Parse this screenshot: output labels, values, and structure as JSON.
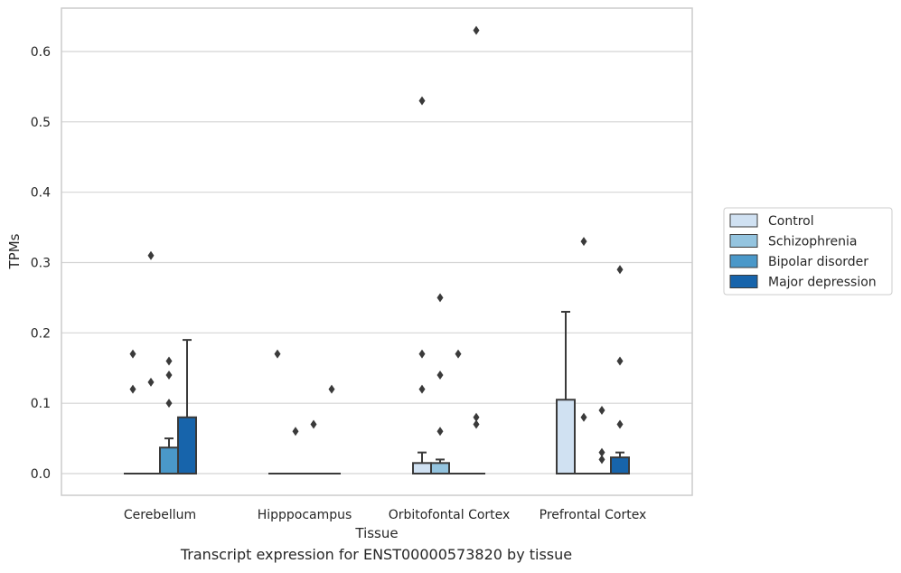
{
  "caption": "Transcript expression for ENST00000573820 by tissue",
  "chart_data": {
    "type": "box",
    "xlabel": "Tissue",
    "ylabel": "TPMs",
    "ylim": [
      -0.03,
      0.66
    ],
    "yticks": [
      "0.0",
      "0.1",
      "0.2",
      "0.3",
      "0.4",
      "0.5",
      "0.6"
    ],
    "grid": "horizontal",
    "legend_position": "right",
    "categories": [
      "Cerebellum",
      "Hipppocampus",
      "Orbitofontal Cortex",
      "Prefrontal Cortex"
    ],
    "series": [
      {
        "name": "Control",
        "color": "#d0e1f2",
        "boxes": [
          {
            "q1": 0,
            "median": 0,
            "q3": 0,
            "whisker_high": 0,
            "outliers": [
              0.17,
              0.12
            ]
          },
          {
            "q1": 0,
            "median": 0,
            "q3": 0,
            "whisker_high": 0,
            "outliers": [
              0.17
            ]
          },
          {
            "q1": 0,
            "median": 0,
            "q3": 0.015,
            "whisker_high": 0.03,
            "outliers": [
              0.53,
              0.17,
              0.12
            ]
          },
          {
            "q1": 0,
            "median": 0,
            "q3": 0.105,
            "whisker_high": 0.23,
            "outliers": []
          }
        ]
      },
      {
        "name": "Schizophrenia",
        "color": "#94c4df",
        "boxes": [
          {
            "q1": 0,
            "median": 0,
            "q3": 0,
            "whisker_high": 0,
            "outliers": [
              0.31,
              0.13
            ]
          },
          {
            "q1": 0,
            "median": 0,
            "q3": 0,
            "whisker_high": 0,
            "outliers": [
              0.06
            ]
          },
          {
            "q1": 0,
            "median": 0,
            "q3": 0.015,
            "whisker_high": 0.02,
            "outliers": [
              0.25,
              0.14,
              0.06
            ]
          },
          {
            "q1": 0,
            "median": 0,
            "q3": 0,
            "whisker_high": 0,
            "outliers": [
              0.33,
              0.08
            ]
          }
        ]
      },
      {
        "name": "Bipolar disorder",
        "color": "#4a98c9",
        "boxes": [
          {
            "q1": 0,
            "median": 0,
            "q3": 0.037,
            "whisker_high": 0.05,
            "outliers": [
              0.16,
              0.14,
              0.1
            ]
          },
          {
            "q1": 0,
            "median": 0,
            "q3": 0,
            "whisker_high": 0,
            "outliers": [
              0.07
            ]
          },
          {
            "q1": 0,
            "median": 0,
            "q3": 0,
            "whisker_high": 0,
            "outliers": [
              0.17
            ]
          },
          {
            "q1": 0,
            "median": 0,
            "q3": 0,
            "whisker_high": 0,
            "outliers": [
              0.09,
              0.03,
              0.02
            ]
          }
        ]
      },
      {
        "name": "Major depression",
        "color": "#1764ab",
        "boxes": [
          {
            "q1": 0,
            "median": 0,
            "q3": 0.08,
            "whisker_high": 0.19,
            "outliers": []
          },
          {
            "q1": 0,
            "median": 0,
            "q3": 0,
            "whisker_high": 0,
            "outliers": [
              0.12
            ]
          },
          {
            "q1": 0,
            "median": 0,
            "q3": 0,
            "whisker_high": 0,
            "outliers": [
              0.63,
              0.08,
              0.07
            ]
          },
          {
            "q1": 0,
            "median": 0,
            "q3": 0.023,
            "whisker_high": 0.03,
            "outliers": [
              0.29,
              0.16,
              0.07
            ]
          }
        ]
      }
    ]
  }
}
